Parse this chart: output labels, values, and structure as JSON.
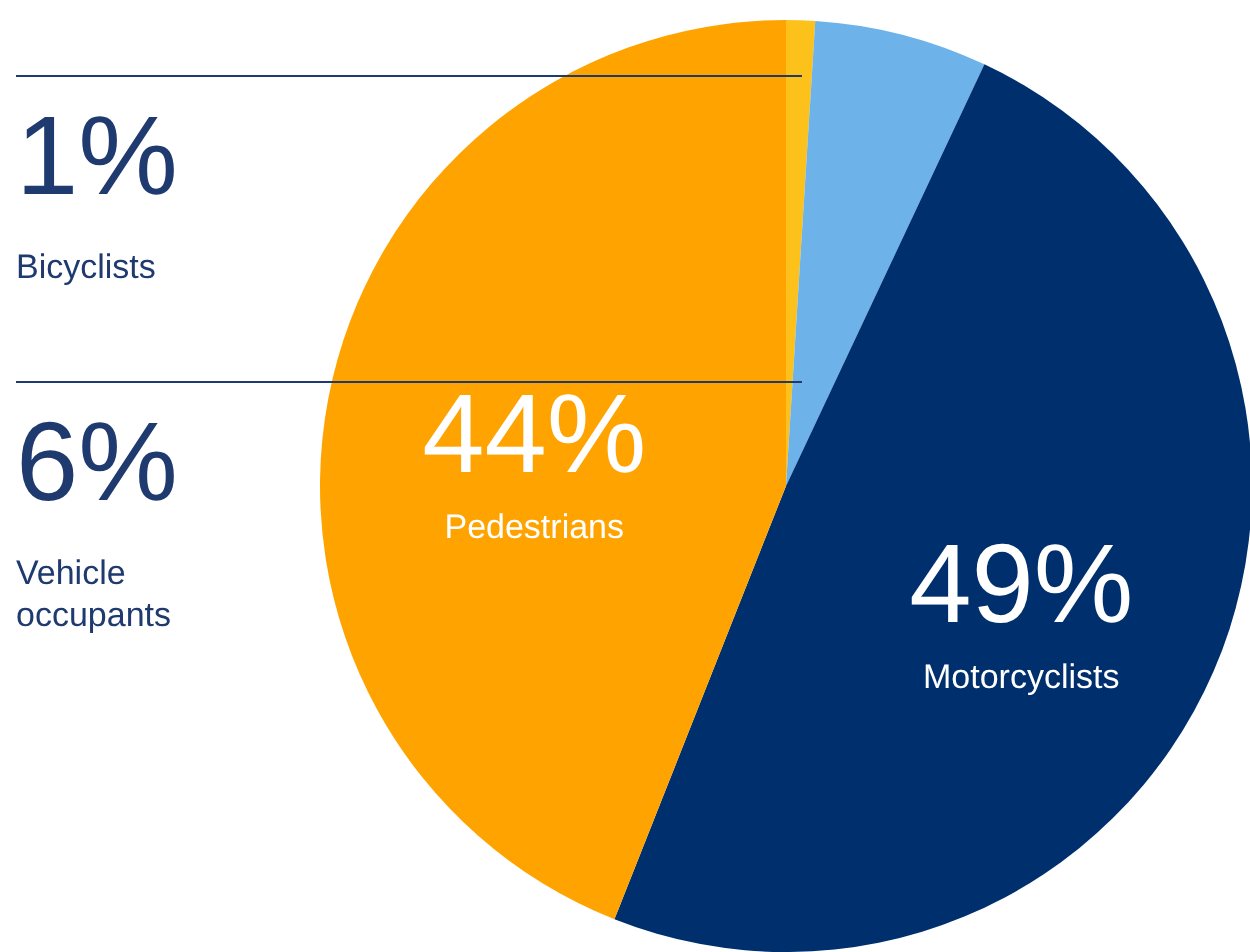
{
  "chart_data": {
    "type": "pie",
    "categories": [
      "Bicyclists",
      "Vehicle occupants",
      "Motorcyclists",
      "Pedestrians"
    ],
    "values": [
      1,
      6,
      49,
      44
    ],
    "value_labels": [
      "1%",
      "6%",
      "49%",
      "44%"
    ],
    "colors": [
      "#fcc21b",
      "#6db3ea",
      "#002f6e",
      "#ffa300"
    ]
  }
}
